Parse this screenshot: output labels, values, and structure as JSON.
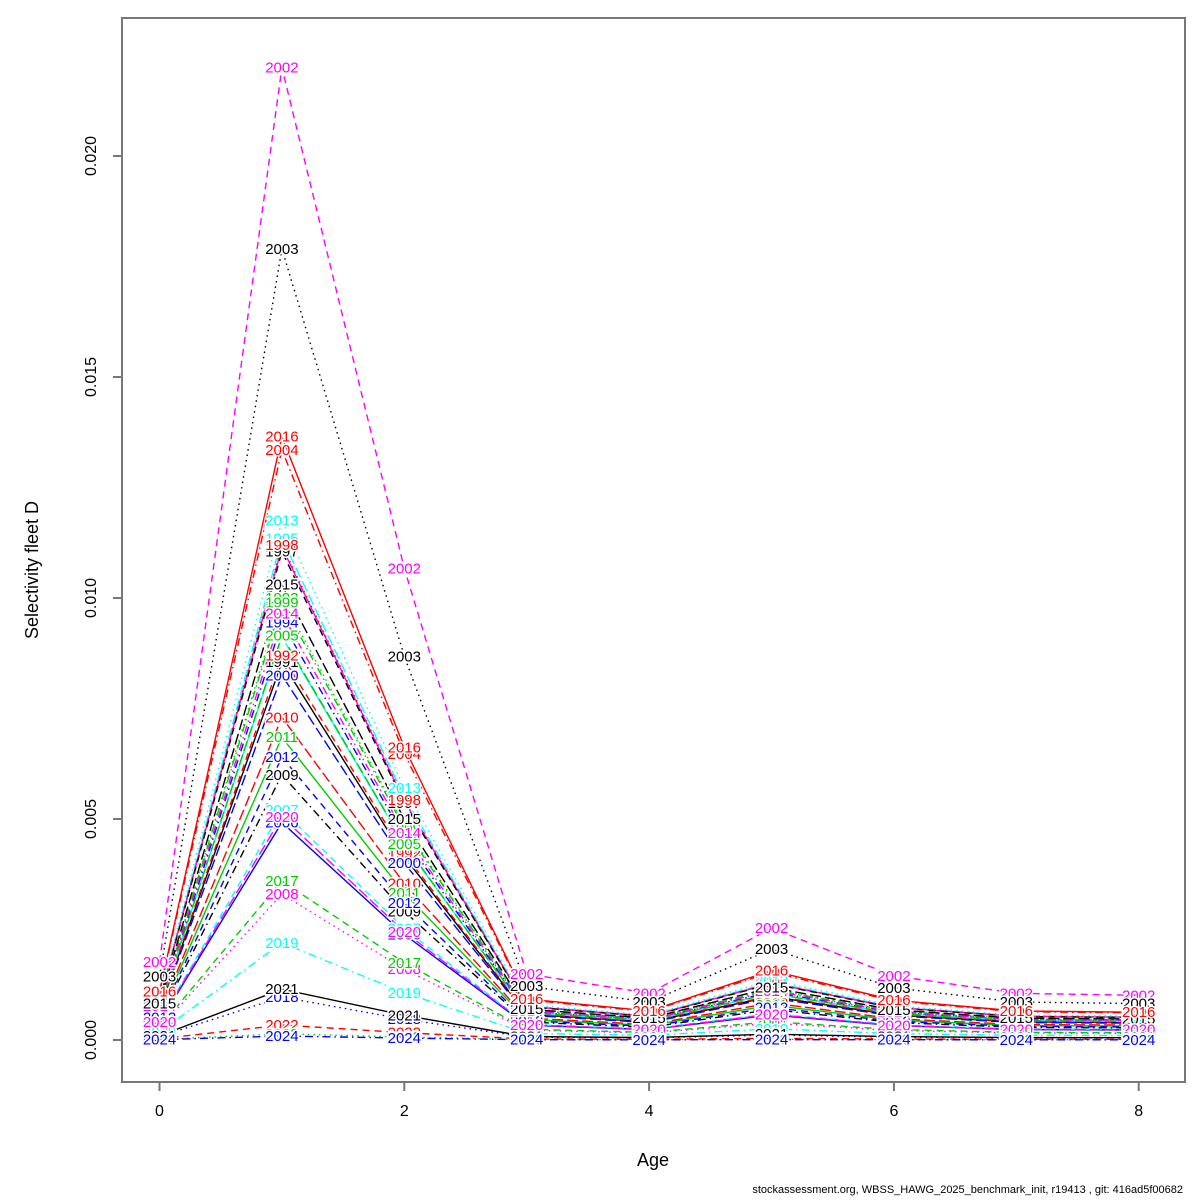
{
  "footer": "stockassessment.org, WBSS_HAWG_2025_benchmark_init, r19413 , git: 416ad5f00682",
  "chart_data": {
    "type": "line",
    "title": "",
    "xlabel": "Age",
    "ylabel": "Selectivity fleet D",
    "x": [
      0,
      1,
      2,
      3,
      4,
      5,
      6,
      7,
      8
    ],
    "xlim": [
      0,
      8
    ],
    "ylim": [
      0,
      0.022
    ],
    "xticks": [
      0,
      2,
      4,
      6,
      8
    ],
    "xtick_labels": [
      "0",
      "2",
      "4",
      "6",
      "8"
    ],
    "yticks": [
      0,
      0.005,
      0.01,
      0.015,
      0.02
    ],
    "ytick_labels": [
      "0.000",
      "0.005",
      "0.010",
      "0.015",
      "0.020"
    ],
    "grid": false,
    "legend_position": "none",
    "annotation_style": "each series labeled with its year text at every data point",
    "palette_note": "R default palette cycling black/red/green3/blue/cyan/magenta with line types solid/dashed/dotted/dotdash/longdash",
    "series": [
      {
        "name": "1991",
        "color": "#000000",
        "linetype": "solid",
        "values": [
          0.000684,
          0.00855,
          0.004147,
          0.000581,
          0.00041,
          0.000983,
          0.000564,
          0.00041,
          0.000393
        ]
      },
      {
        "name": "1992",
        "color": "#FF0000",
        "linetype": "dashed",
        "values": [
          0.000696,
          0.0087,
          0.00422,
          0.000592,
          0.000418,
          0.001001,
          0.000574,
          0.000418,
          0.0004
        ]
      },
      {
        "name": "1993",
        "color": "#00CD00",
        "linetype": "dotted",
        "values": [
          0.0008,
          0.01,
          0.00485,
          0.00068,
          0.00048,
          0.00115,
          0.00066,
          0.00048,
          0.00046
        ]
      },
      {
        "name": "1994",
        "color": "#0000FF",
        "linetype": "dotdash",
        "values": [
          0.000756,
          0.00945,
          0.004583,
          0.000643,
          0.000454,
          0.001087,
          0.000624,
          0.000454,
          0.000435
        ]
      },
      {
        "name": "1995",
        "color": "#00FFFF",
        "linetype": "longdash",
        "values": [
          0.000908,
          0.01135,
          0.005505,
          0.000772,
          0.000545,
          0.001305,
          0.000749,
          0.000545,
          0.000522
        ]
      },
      {
        "name": "1996",
        "color": "#FF00FF",
        "linetype": "solid",
        "values": [
          0.000892,
          0.01115,
          0.005408,
          0.000758,
          0.000535,
          0.001282,
          0.000736,
          0.000535,
          0.000513
        ]
      },
      {
        "name": "1997",
        "color": "#000000",
        "linetype": "dashed",
        "values": [
          0.000884,
          0.01105,
          0.005359,
          0.000751,
          0.00053,
          0.001271,
          0.000729,
          0.00053,
          0.000508
        ]
      },
      {
        "name": "1998",
        "color": "#FF0000",
        "linetype": "dotted",
        "values": [
          0.000896,
          0.0112,
          0.005432,
          0.000762,
          0.000538,
          0.001288,
          0.000739,
          0.000538,
          0.000515
        ]
      },
      {
        "name": "1999",
        "color": "#00CD00",
        "linetype": "dotdash",
        "values": [
          0.000792,
          0.0099,
          0.004802,
          0.000673,
          0.000475,
          0.001139,
          0.000653,
          0.000475,
          0.000455
        ]
      },
      {
        "name": "2000",
        "color": "#0000FF",
        "linetype": "longdash",
        "values": [
          0.00066,
          0.00825,
          0.004001,
          0.000561,
          0.000396,
          0.000949,
          0.000545,
          0.000396,
          0.00038
        ]
      },
      {
        "name": "2001",
        "color": "#00FFFF",
        "linetype": "solid",
        "values": [
          0.00073,
          0.00912,
          0.004423,
          0.00062,
          0.000438,
          0.001049,
          0.000602,
          0.000438,
          0.00042
        ]
      },
      {
        "name": "2002",
        "color": "#FF00FF",
        "linetype": "dashed",
        "values": [
          0.00176,
          0.022,
          0.01067,
          0.001496,
          0.001056,
          0.00253,
          0.001452,
          0.001056,
          0.001012
        ]
      },
      {
        "name": "2003",
        "color": "#000000",
        "linetype": "dotted",
        "values": [
          0.001432,
          0.0179,
          0.008682,
          0.001217,
          0.000859,
          0.002059,
          0.001181,
          0.000859,
          0.000823
        ]
      },
      {
        "name": "2004",
        "color": "#FF0000",
        "linetype": "dotdash",
        "values": [
          0.001068,
          0.01335,
          0.006475,
          0.000908,
          0.000641,
          0.001535,
          0.000881,
          0.000641,
          0.000614
        ]
      },
      {
        "name": "2005",
        "color": "#00CD00",
        "linetype": "longdash",
        "values": [
          0.000732,
          0.00915,
          0.004438,
          0.000622,
          0.000439,
          0.001052,
          0.000604,
          0.000439,
          0.000421
        ]
      },
      {
        "name": "2006",
        "color": "#0000FF",
        "linetype": "solid",
        "values": [
          0.000394,
          0.00492,
          0.002386,
          0.000335,
          0.000236,
          0.000566,
          0.000325,
          0.000236,
          0.000226
        ]
      },
      {
        "name": "2007",
        "color": "#00FFFF",
        "linetype": "dashed",
        "values": [
          0.000416,
          0.0052,
          0.002522,
          0.000354,
          0.00025,
          0.000598,
          0.000343,
          0.00025,
          0.000239
        ]
      },
      {
        "name": "2008",
        "color": "#FF00FF",
        "linetype": "dotted",
        "values": [
          0.000264,
          0.0033,
          0.001601,
          0.000224,
          0.000158,
          0.00038,
          0.000218,
          0.000158,
          0.000152
        ]
      },
      {
        "name": "2009",
        "color": "#000000",
        "linetype": "dotdash",
        "values": [
          0.00048,
          0.006,
          0.00291,
          0.000408,
          0.000288,
          0.00069,
          0.000396,
          0.000288,
          0.000276
        ]
      },
      {
        "name": "2010",
        "color": "#FF0000",
        "linetype": "longdash",
        "values": [
          0.000584,
          0.0073,
          0.003541,
          0.000496,
          0.00035,
          0.00084,
          0.000482,
          0.00035,
          0.000336
        ]
      },
      {
        "name": "2011",
        "color": "#00CD00",
        "linetype": "solid",
        "values": [
          0.000548,
          0.00685,
          0.003322,
          0.000466,
          0.000329,
          0.000788,
          0.000452,
          0.000329,
          0.000315
        ]
      },
      {
        "name": "2012",
        "color": "#0000FF",
        "linetype": "dashed",
        "values": [
          0.000512,
          0.0064,
          0.003104,
          0.000435,
          0.000307,
          0.000736,
          0.000422,
          0.000307,
          0.000294
        ]
      },
      {
        "name": "2013",
        "color": "#00FFFF",
        "linetype": "dotted",
        "values": [
          0.00094,
          0.01175,
          0.005699,
          0.000799,
          0.000564,
          0.001351,
          0.000776,
          0.000564,
          0.000541
        ]
      },
      {
        "name": "2014",
        "color": "#FF00FF",
        "linetype": "dotdash",
        "values": [
          0.000772,
          0.00965,
          0.00468,
          0.000656,
          0.000463,
          0.00111,
          0.000637,
          0.000463,
          0.000444
        ]
      },
      {
        "name": "2015",
        "color": "#000000",
        "linetype": "longdash",
        "values": [
          0.000824,
          0.0103,
          0.004996,
          0.0007,
          0.000494,
          0.001185,
          0.00068,
          0.000494,
          0.000474
        ]
      },
      {
        "name": "2016",
        "color": "#FF0000",
        "linetype": "solid",
        "values": [
          0.001092,
          0.01365,
          0.00662,
          0.000928,
          0.000655,
          0.00157,
          0.000901,
          0.000655,
          0.000628
        ]
      },
      {
        "name": "2017",
        "color": "#00CD00",
        "linetype": "dashed",
        "values": [
          0.000288,
          0.0036,
          0.001746,
          0.000245,
          0.000173,
          0.000414,
          0.000238,
          0.000173,
          0.000166
        ]
      },
      {
        "name": "2018",
        "color": "#0000FF",
        "linetype": "dotted",
        "values": [
          7.8e-05,
          0.00097,
          0.00047,
          6.6e-05,
          4.7e-05,
          0.000112,
          6.4e-05,
          4.7e-05,
          4.5e-05
        ]
      },
      {
        "name": "2019",
        "color": "#00FFFF",
        "linetype": "dotdash",
        "values": [
          0.000176,
          0.0022,
          0.001067,
          0.00015,
          0.000106,
          0.000253,
          0.000145,
          0.000106,
          0.000101
        ]
      },
      {
        "name": "2020",
        "color": "#FF00FF",
        "linetype": "longdash",
        "values": [
          0.000404,
          0.00505,
          0.002449,
          0.000343,
          0.000242,
          0.000581,
          0.000333,
          0.000242,
          0.000232
        ]
      },
      {
        "name": "2021",
        "color": "#000000",
        "linetype": "solid",
        "values": [
          9.2e-05,
          0.00115,
          0.000558,
          7.8e-05,
          5.5e-05,
          0.000132,
          7.6e-05,
          5.5e-05,
          5.3e-05
        ]
      },
      {
        "name": "2022",
        "color": "#FF0000",
        "linetype": "dashed",
        "values": [
          2.7e-05,
          0.00034,
          0.000165,
          2.3e-05,
          1.6e-05,
          3.9e-05,
          2.2e-05,
          1.6e-05,
          1.6e-05
        ]
      },
      {
        "name": "2023",
        "color": "#00CD00",
        "linetype": "dotted",
        "values": [
          1.1e-05,
          0.00014,
          6.8e-05,
          1e-05,
          7e-06,
          1.6e-05,
          9e-06,
          7e-06,
          6e-06
        ]
      },
      {
        "name": "2024",
        "color": "#0000FF",
        "linetype": "dotdash",
        "values": [
          7e-06,
          9e-05,
          4.4e-05,
          6e-06,
          4e-06,
          1e-05,
          6e-06,
          4e-06,
          4e-06
        ]
      }
    ]
  }
}
